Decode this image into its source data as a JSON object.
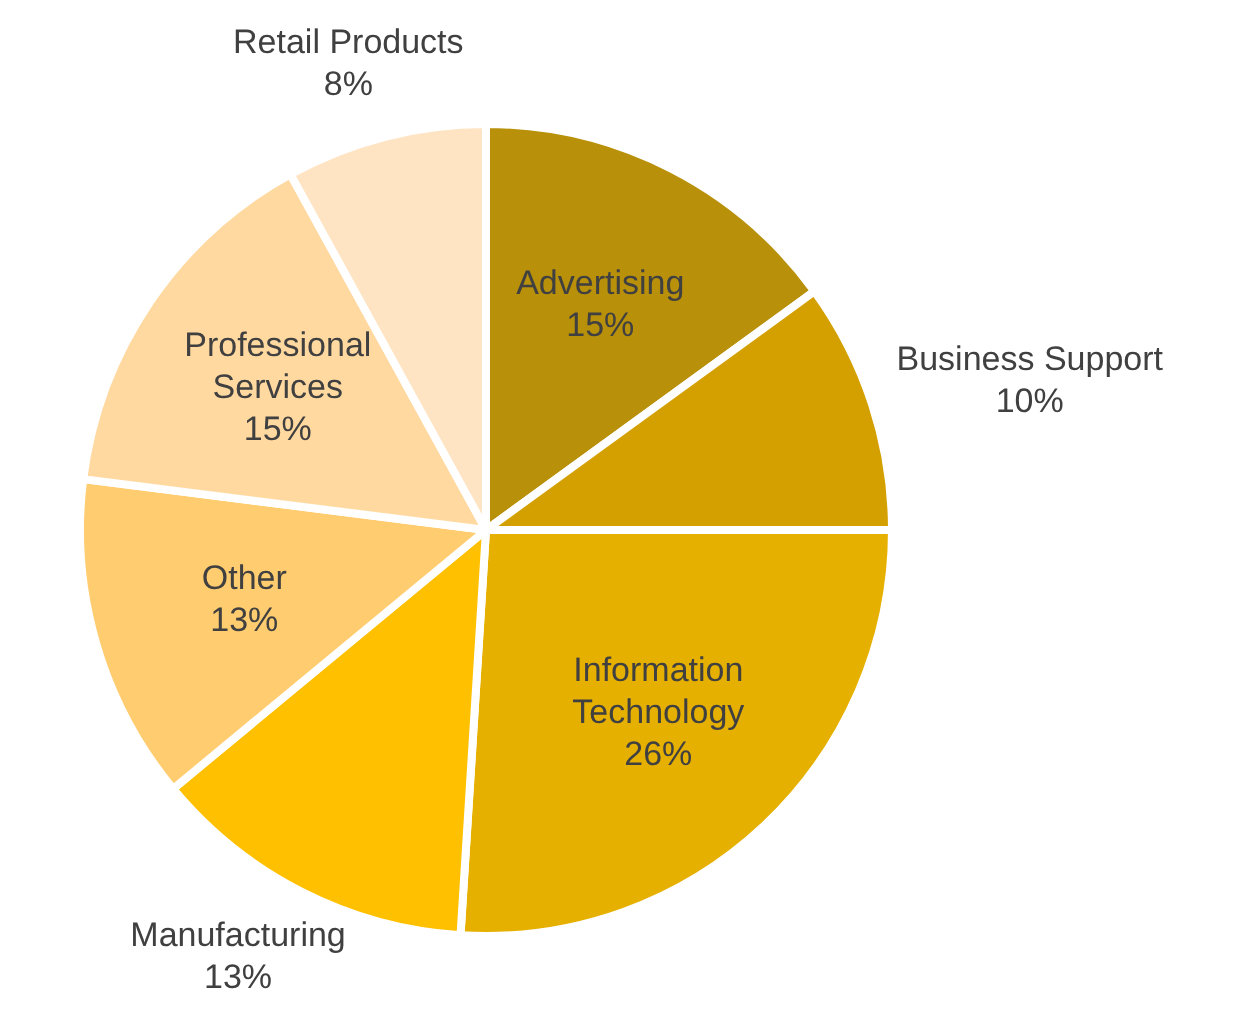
{
  "chart_data": {
    "type": "pie",
    "categories": [
      "Advertising",
      "Business Support",
      "Information Technology",
      "Manufacturing",
      "Other",
      "Professional Services",
      "Retail Products"
    ],
    "values": [
      15,
      10,
      26,
      13,
      13,
      15,
      8
    ],
    "value_labels": [
      "15%",
      "10%",
      "26%",
      "13%",
      "13%",
      "15%",
      "8%"
    ],
    "colors": [
      "#b8900a",
      "#d4a000",
      "#e6b000",
      "#ffc000",
      "#ffcc70",
      "#ffd9a0",
      "#ffe4c4"
    ],
    "legend": false
  }
}
